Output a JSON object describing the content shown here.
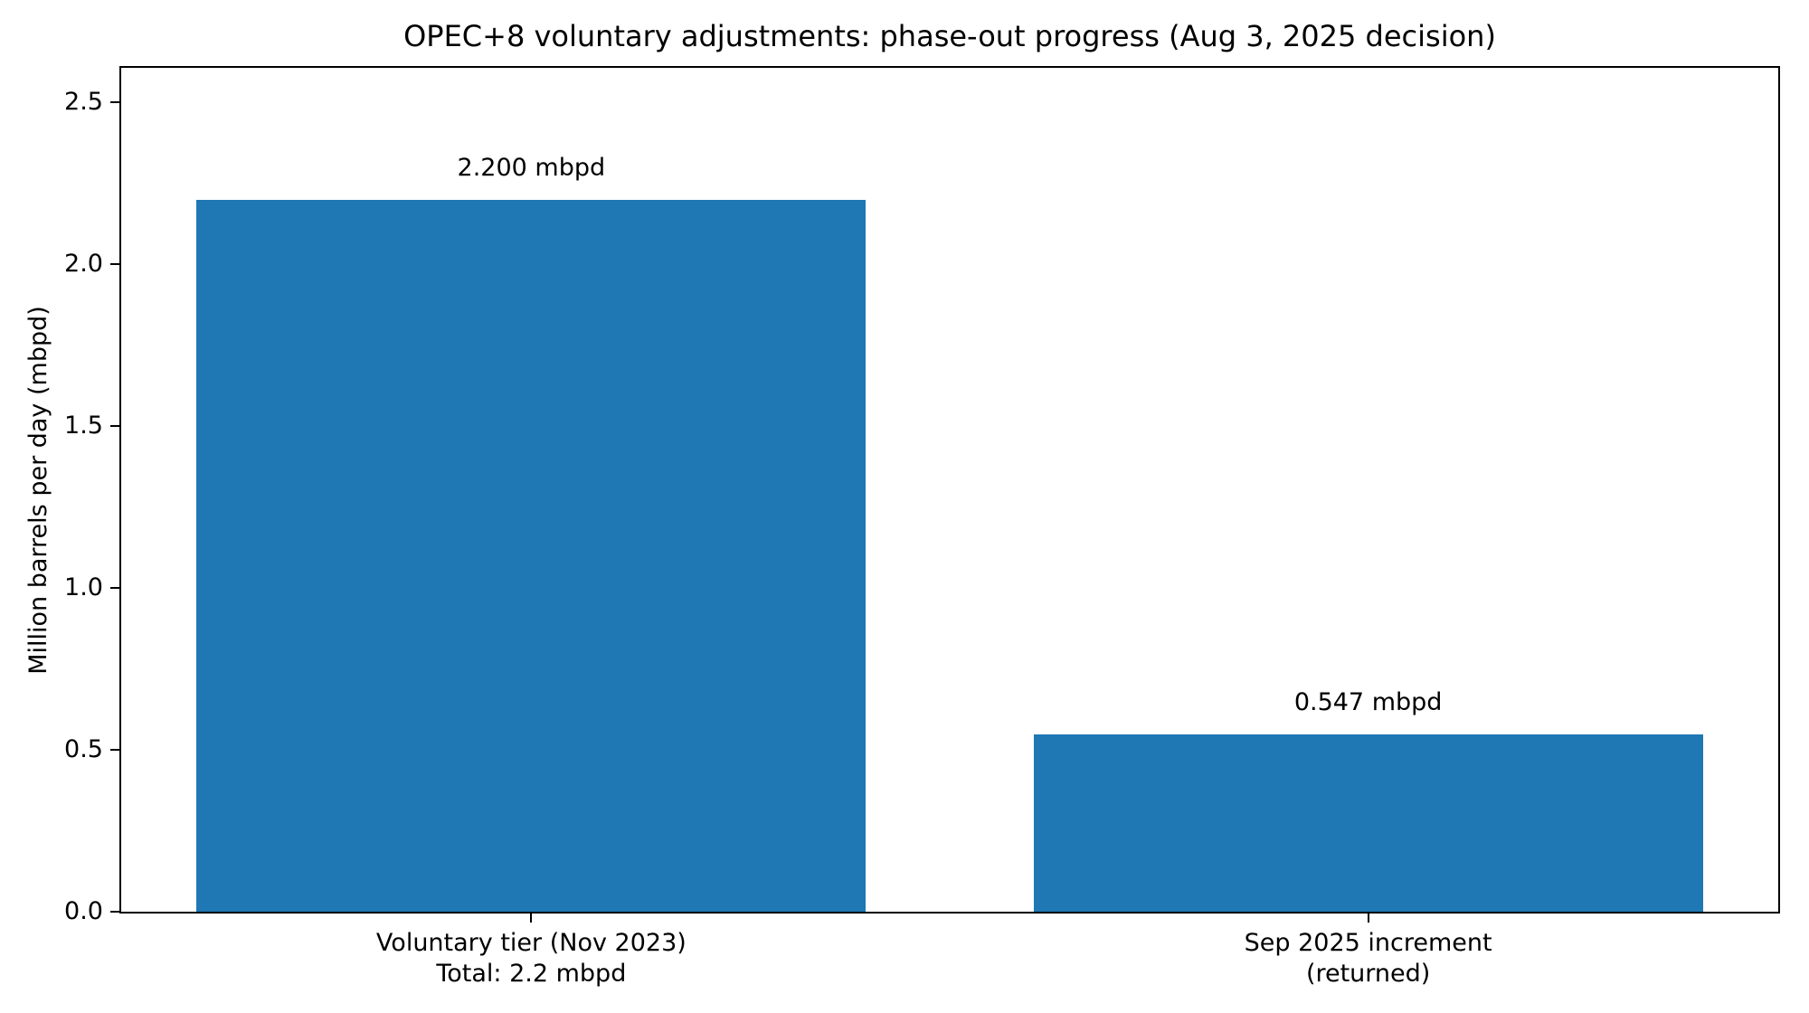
{
  "chart_data": {
    "type": "bar",
    "title": "OPEC+8 voluntary adjustments: phase-out progress (Aug 3, 2025 decision)",
    "xlabel": "",
    "ylabel": "Million barrels per day (mbpd)",
    "categories": [
      "Voluntary tier (Nov 2023)\nTotal: 2.2 mbpd",
      "Sep 2025 increment\n(returned)"
    ],
    "values": [
      2.2,
      0.547
    ],
    "bar_labels": [
      "2.200 mbpd",
      "0.547 mbpd"
    ],
    "yticks": [
      0.0,
      0.5,
      1.0,
      1.5,
      2.0,
      2.5
    ],
    "ytick_labels": [
      "0.0",
      "0.5",
      "1.0",
      "1.5",
      "2.0",
      "2.5"
    ],
    "ylim": [
      0,
      2.607
    ],
    "xlim": [
      -0.49,
      1.49
    ],
    "bar_width": 0.8,
    "bar_color": "#1f77b4",
    "text_color": "#000000",
    "background_color": "#ffffff",
    "grid": false,
    "legend": "none"
  }
}
